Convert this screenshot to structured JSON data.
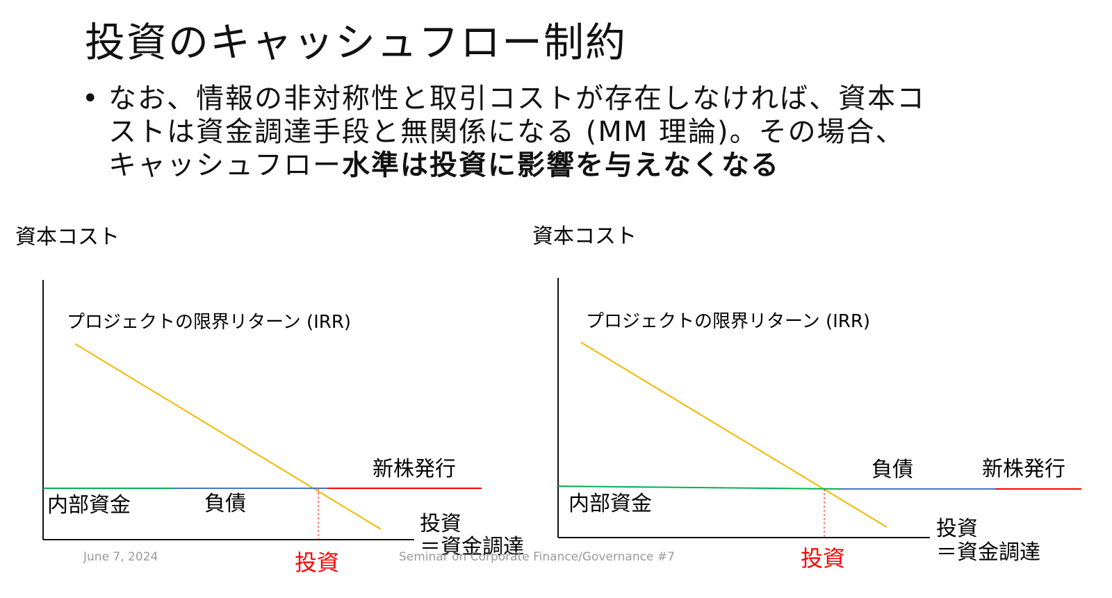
{
  "title": "投資のキャッシュフロー制約",
  "bullet": {
    "line1": "なお、情報の非対称性と取引コストが存在しなければ、資本コ",
    "line2": "ストは資金調達手段と無関係になる (MM 理論)。その場合、",
    "line3_normal": "キャッシュフロー",
    "line3_bold": "水準は投資に影響を与えなくなる"
  },
  "diagrams": [
    {
      "y_label": "資本コスト",
      "curve_label": "プロジェクトの限界リターン (IRR)",
      "segments": [
        "内部資金",
        "負債",
        "新株発行"
      ],
      "x_label_line1": "投資",
      "x_label_line2": "＝資金調達",
      "investment_label": "投資"
    },
    {
      "y_label": "資本コスト",
      "curve_label": "プロジェクトの限界リターン (IRR)",
      "segments": [
        "内部資金",
        "負債",
        "新株発行"
      ],
      "x_label_line1": "投資",
      "x_label_line2": "＝資金調達",
      "investment_label": "投資"
    }
  ],
  "footer": {
    "date": "June 7, 2024",
    "seminar": "Seminar on Corporate Finance/Governance #7"
  },
  "colors": {
    "irr_line": "#f5b800",
    "internal_funds": "#00b050",
    "debt": "#4472c4",
    "new_equity": "#ff0000",
    "investment_marker": "#ff0000"
  }
}
